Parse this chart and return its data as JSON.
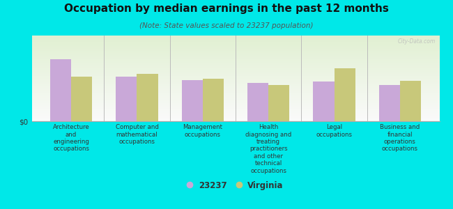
{
  "title": "Occupation by median earnings in the past 12 months",
  "subtitle": "(Note: State values scaled to 23237 population)",
  "background_color": "#00e8e8",
  "plot_bg_color": "#e8f2e0",
  "categories": [
    "Architecture\nand\nengineering\noccupations",
    "Computer and\nmathematical\noccupations",
    "Management\noccupations",
    "Health\ndiagnosing and\ntreating\npractitioners\nand other\ntechnical\noccupations",
    "Legal\noccupations",
    "Business and\nfinancial\noperations\noccupations"
  ],
  "values_23237": [
    72,
    52,
    48,
    45,
    46,
    42
  ],
  "values_virginia": [
    52,
    55,
    50,
    42,
    62,
    47
  ],
  "color_23237": "#c9a8d8",
  "color_virginia": "#c8c87a",
  "ylabel": "$0",
  "legend_label_1": "23237",
  "legend_label_2": "Virginia",
  "bar_width": 0.32,
  "watermark": "City-Data.com",
  "ylim": [
    0,
    100
  ]
}
